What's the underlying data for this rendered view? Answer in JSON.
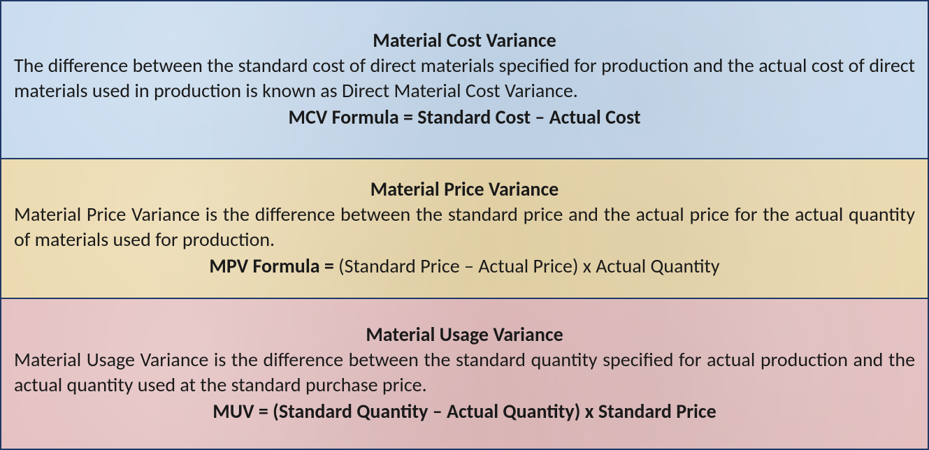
{
  "colors": {
    "border": "#1f3864",
    "text": "#1a1a1a",
    "bg_mcv": "#c5d9ed",
    "bg_mpv": "#ead8ab",
    "bg_muv": "#e3bdbe"
  },
  "typography": {
    "font_family": "Calibri, 'Segoe UI', Arial, sans-serif",
    "title_fontsize": 28,
    "title_weight": 700,
    "body_fontsize": 28,
    "body_weight": 400,
    "formula_fontsize": 28
  },
  "sections": {
    "mcv": {
      "title": "Material Cost Variance",
      "body": "The difference between the standard cost of direct materials specified for production and the actual cost of direct materials used in production is known as Direct Material Cost Variance.",
      "formula_label": "MCV  Formula = Standard Cost – Actual Cost",
      "formula_rest": "",
      "formula_all_bold": true
    },
    "mpv": {
      "title": "Material Price Variance",
      "body": "Material Price Variance is the difference between the standard price and the actual price for the actual quantity of materials used for production.",
      "formula_label": "MPV  Formula = ",
      "formula_rest": "(Standard Price – Actual Price) x Actual Quantity",
      "formula_all_bold": false
    },
    "muv": {
      "title": "Material Usage Variance",
      "body": "Material Usage Variance is the difference between the standard quantity specified for actual production and the actual quantity used at the standard purchase price.",
      "formula_label": "MUV = (Standard Quantity – Actual Quantity) x Standard Price",
      "formula_rest": "",
      "formula_all_bold": true
    }
  }
}
